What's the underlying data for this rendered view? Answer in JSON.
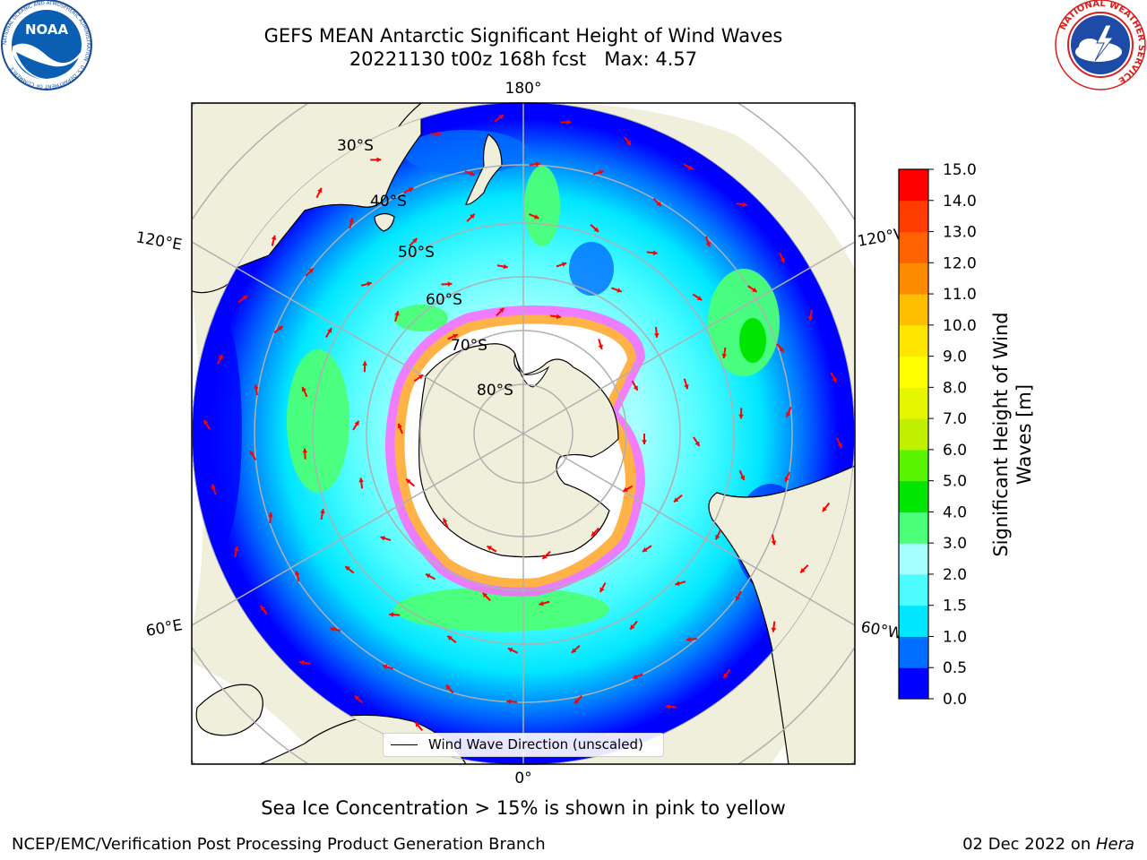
{
  "header": {
    "title_line1": "GEFS MEAN Antarctic Significant Height of Wind Waves",
    "title_line2": "20221130 t00z 168h fcst   Max: 4.57"
  },
  "logos": {
    "left": {
      "name": "noaa-logo",
      "text": "NOAA",
      "ring_text": "NATIONAL OCEANIC AND ATMOSPHERIC ADMINISTRATION · U.S. DEPARTMENT OF COMMERCE"
    },
    "right": {
      "name": "nws-logo",
      "ring_text": "NATIONAL WEATHER SERVICE"
    }
  },
  "map": {
    "projection": "south-polar-stereographic",
    "longitude_labels": {
      "top": "180°",
      "bottom": "0°",
      "upper_left": "120°E",
      "upper_right": "120°W",
      "lower_left": "60°E",
      "lower_right": "60°W"
    },
    "latitude_labels": [
      "30°S",
      "40°S",
      "50°S",
      "60°S",
      "70°S",
      "80°S"
    ],
    "legend": {
      "label": "Wind Wave Direction (unscaled)"
    },
    "colors": {
      "land": "#efefdb",
      "ice": "#ffffff",
      "arrow": "#ff0000",
      "grid": "#b0b0b0"
    }
  },
  "colorbar": {
    "label_line1": "Significant Height of Wind",
    "label_line2": "Waves [m]",
    "ticks": [
      "0.0",
      "0.5",
      "1.0",
      "1.5",
      "2.0",
      "3.0",
      "4.0",
      "5.0",
      "6.0",
      "7.0",
      "8.0",
      "9.0",
      "10.0",
      "11.0",
      "12.0",
      "13.0",
      "14.0",
      "15.0"
    ],
    "colors": [
      "#0000ff",
      "#006eff",
      "#00e6ff",
      "#4cfcff",
      "#a6ffff",
      "#4cff78",
      "#00e600",
      "#59f500",
      "#c0f000",
      "#e6f500",
      "#ffff00",
      "#ffe600",
      "#ffbf00",
      "#ff8c00",
      "#ff6200",
      "#ff3c00",
      "#ff0000"
    ]
  },
  "caption": "Sea Ice Concentration > 15% is shown in pink to yellow",
  "footer": {
    "left": "NCEP/EMC/Verification Post Processing Product Generation Branch",
    "right_prefix": "02 Dec 2022 on ",
    "right_host": "Hera"
  }
}
